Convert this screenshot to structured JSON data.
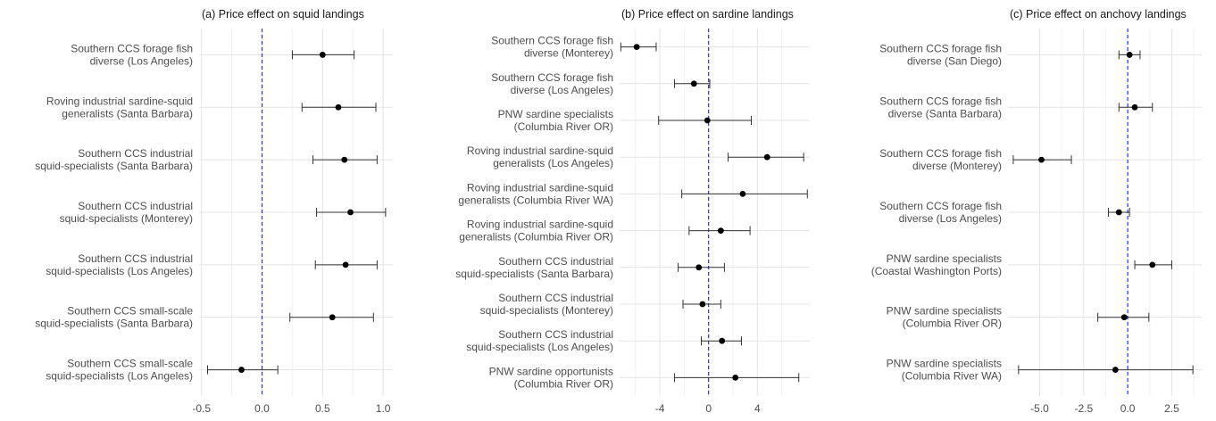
{
  "colors": {
    "point": "#000000",
    "errorbar": "#333333",
    "zero_line": "#2233ee",
    "grid_major": "#e4e4e4",
    "grid_minor": "#f1f1f1",
    "label_text": "#4d4d4d",
    "title_text": "#1a1a1a"
  },
  "chart_data": [
    {
      "type": "scatter",
      "title": "(a) Price effect on squid landings",
      "xlabel": "",
      "ylabel": "",
      "xlim": [
        -0.52,
        1.08
      ],
      "x_ticks": [
        -0.5,
        0.0,
        0.5,
        1.0
      ],
      "x_tick_labels": [
        "-0.5",
        "0.0",
        "0.5",
        "1.0"
      ],
      "minor_ticks": [
        -0.25,
        0.25,
        0.75
      ],
      "reference_line": 0,
      "grid": true,
      "categories": [
        [
          "Southern CCS forage fish",
          "diverse (Los Angeles)"
        ],
        [
          "Roving industrial sardine-squid",
          "generalists (Santa Barbara)"
        ],
        [
          "Southern CCS industrial",
          "squid-specialists (Santa Barbara)"
        ],
        [
          "Southern CCS industrial",
          "squid-specialists (Monterey)"
        ],
        [
          "Southern CCS industrial",
          "squid-specialists (Los Angeles)"
        ],
        [
          "Southern CCS small-scale",
          "squid-specialists (Santa Barbara)"
        ],
        [
          "Southern CCS small-scale",
          "squid-specialists (Los Angeles)"
        ]
      ],
      "estimate": [
        0.5,
        0.63,
        0.68,
        0.73,
        0.69,
        0.58,
        -0.17
      ],
      "lower": [
        0.25,
        0.33,
        0.42,
        0.45,
        0.44,
        0.23,
        -0.45
      ],
      "upper": [
        0.76,
        0.94,
        0.95,
        1.02,
        0.95,
        0.92,
        0.13
      ]
    },
    {
      "type": "scatter",
      "title": "(b) Price effect on sardine landings",
      "xlabel": "",
      "ylabel": "",
      "xlim": [
        -7.3,
        8.3
      ],
      "x_ticks": [
        -4,
        0,
        4
      ],
      "x_tick_labels": [
        "-4",
        "0",
        "4"
      ],
      "minor_ticks": [
        -6,
        -2,
        2,
        6
      ],
      "reference_line": 0,
      "grid": true,
      "categories": [
        [
          "Southern CCS forage fish",
          "diverse (Monterey)"
        ],
        [
          "Southern CCS forage fish",
          "diverse (Los Angeles)"
        ],
        [
          "PNW sardine specialists",
          "(Columbia River OR)"
        ],
        [
          "Roving industrial sardine-squid",
          "generalists (Los Angeles)"
        ],
        [
          "Roving industrial sardine-squid",
          "generalists (Columbia River WA)"
        ],
        [
          "Roving industrial sardine-squid",
          "generalists (Columbia River OR)"
        ],
        [
          "Southern CCS industrial",
          "squid-specialists (Santa Barbara)"
        ],
        [
          "Southern CCS industrial",
          "squid-specialists (Monterey)"
        ],
        [
          "Southern CCS industrial",
          "squid-specialists (Los Angeles)"
        ],
        [
          "PNW sardine opportunists",
          "(Columbia River OR)"
        ]
      ],
      "estimate": [
        -5.9,
        -1.2,
        -0.1,
        4.8,
        2.8,
        1.0,
        -0.8,
        -0.5,
        1.1,
        2.2
      ],
      "lower": [
        -7.2,
        -2.8,
        -4.1,
        1.6,
        -2.2,
        -1.6,
        -2.5,
        -2.1,
        -0.6,
        -2.8
      ],
      "upper": [
        -4.3,
        0.1,
        3.5,
        7.8,
        8.1,
        3.4,
        1.3,
        1.0,
        2.7,
        7.4
      ]
    },
    {
      "type": "scatter",
      "title": "(c) Price effect on anchovy landings",
      "xlabel": "",
      "ylabel": "",
      "xlim": [
        -6.8,
        4.2
      ],
      "x_ticks": [
        -5.0,
        -2.5,
        0.0,
        2.5
      ],
      "x_tick_labels": [
        "-5.0",
        "-2.5",
        "0.0",
        "2.5"
      ],
      "minor_ticks": [
        -3.75,
        -1.25,
        1.25,
        3.75
      ],
      "reference_line": 0,
      "grid": true,
      "categories": [
        [
          "Southern CCS forage fish",
          "diverse (San Diego)"
        ],
        [
          "Southern CCS forage fish",
          "diverse (Santa Barbara)"
        ],
        [
          "Southern CCS forage fish",
          "diverse (Monterey)"
        ],
        [
          "Southern CCS forage fish",
          "diverse (Los Angeles)"
        ],
        [
          "PNW sardine specialists",
          "(Coastal Washington Ports)"
        ],
        [
          "PNW sardine specialists",
          "(Columbia River OR)"
        ],
        [
          "PNW sardine specialists",
          "(Columbia River WA)"
        ]
      ],
      "estimate": [
        0.1,
        0.4,
        -4.9,
        -0.5,
        1.4,
        -0.2,
        -0.7
      ],
      "lower": [
        -0.5,
        -0.5,
        -6.5,
        -1.1,
        0.4,
        -1.7,
        -6.2
      ],
      "upper": [
        0.7,
        1.4,
        -3.2,
        0.1,
        2.5,
        1.2,
        3.7
      ]
    }
  ]
}
